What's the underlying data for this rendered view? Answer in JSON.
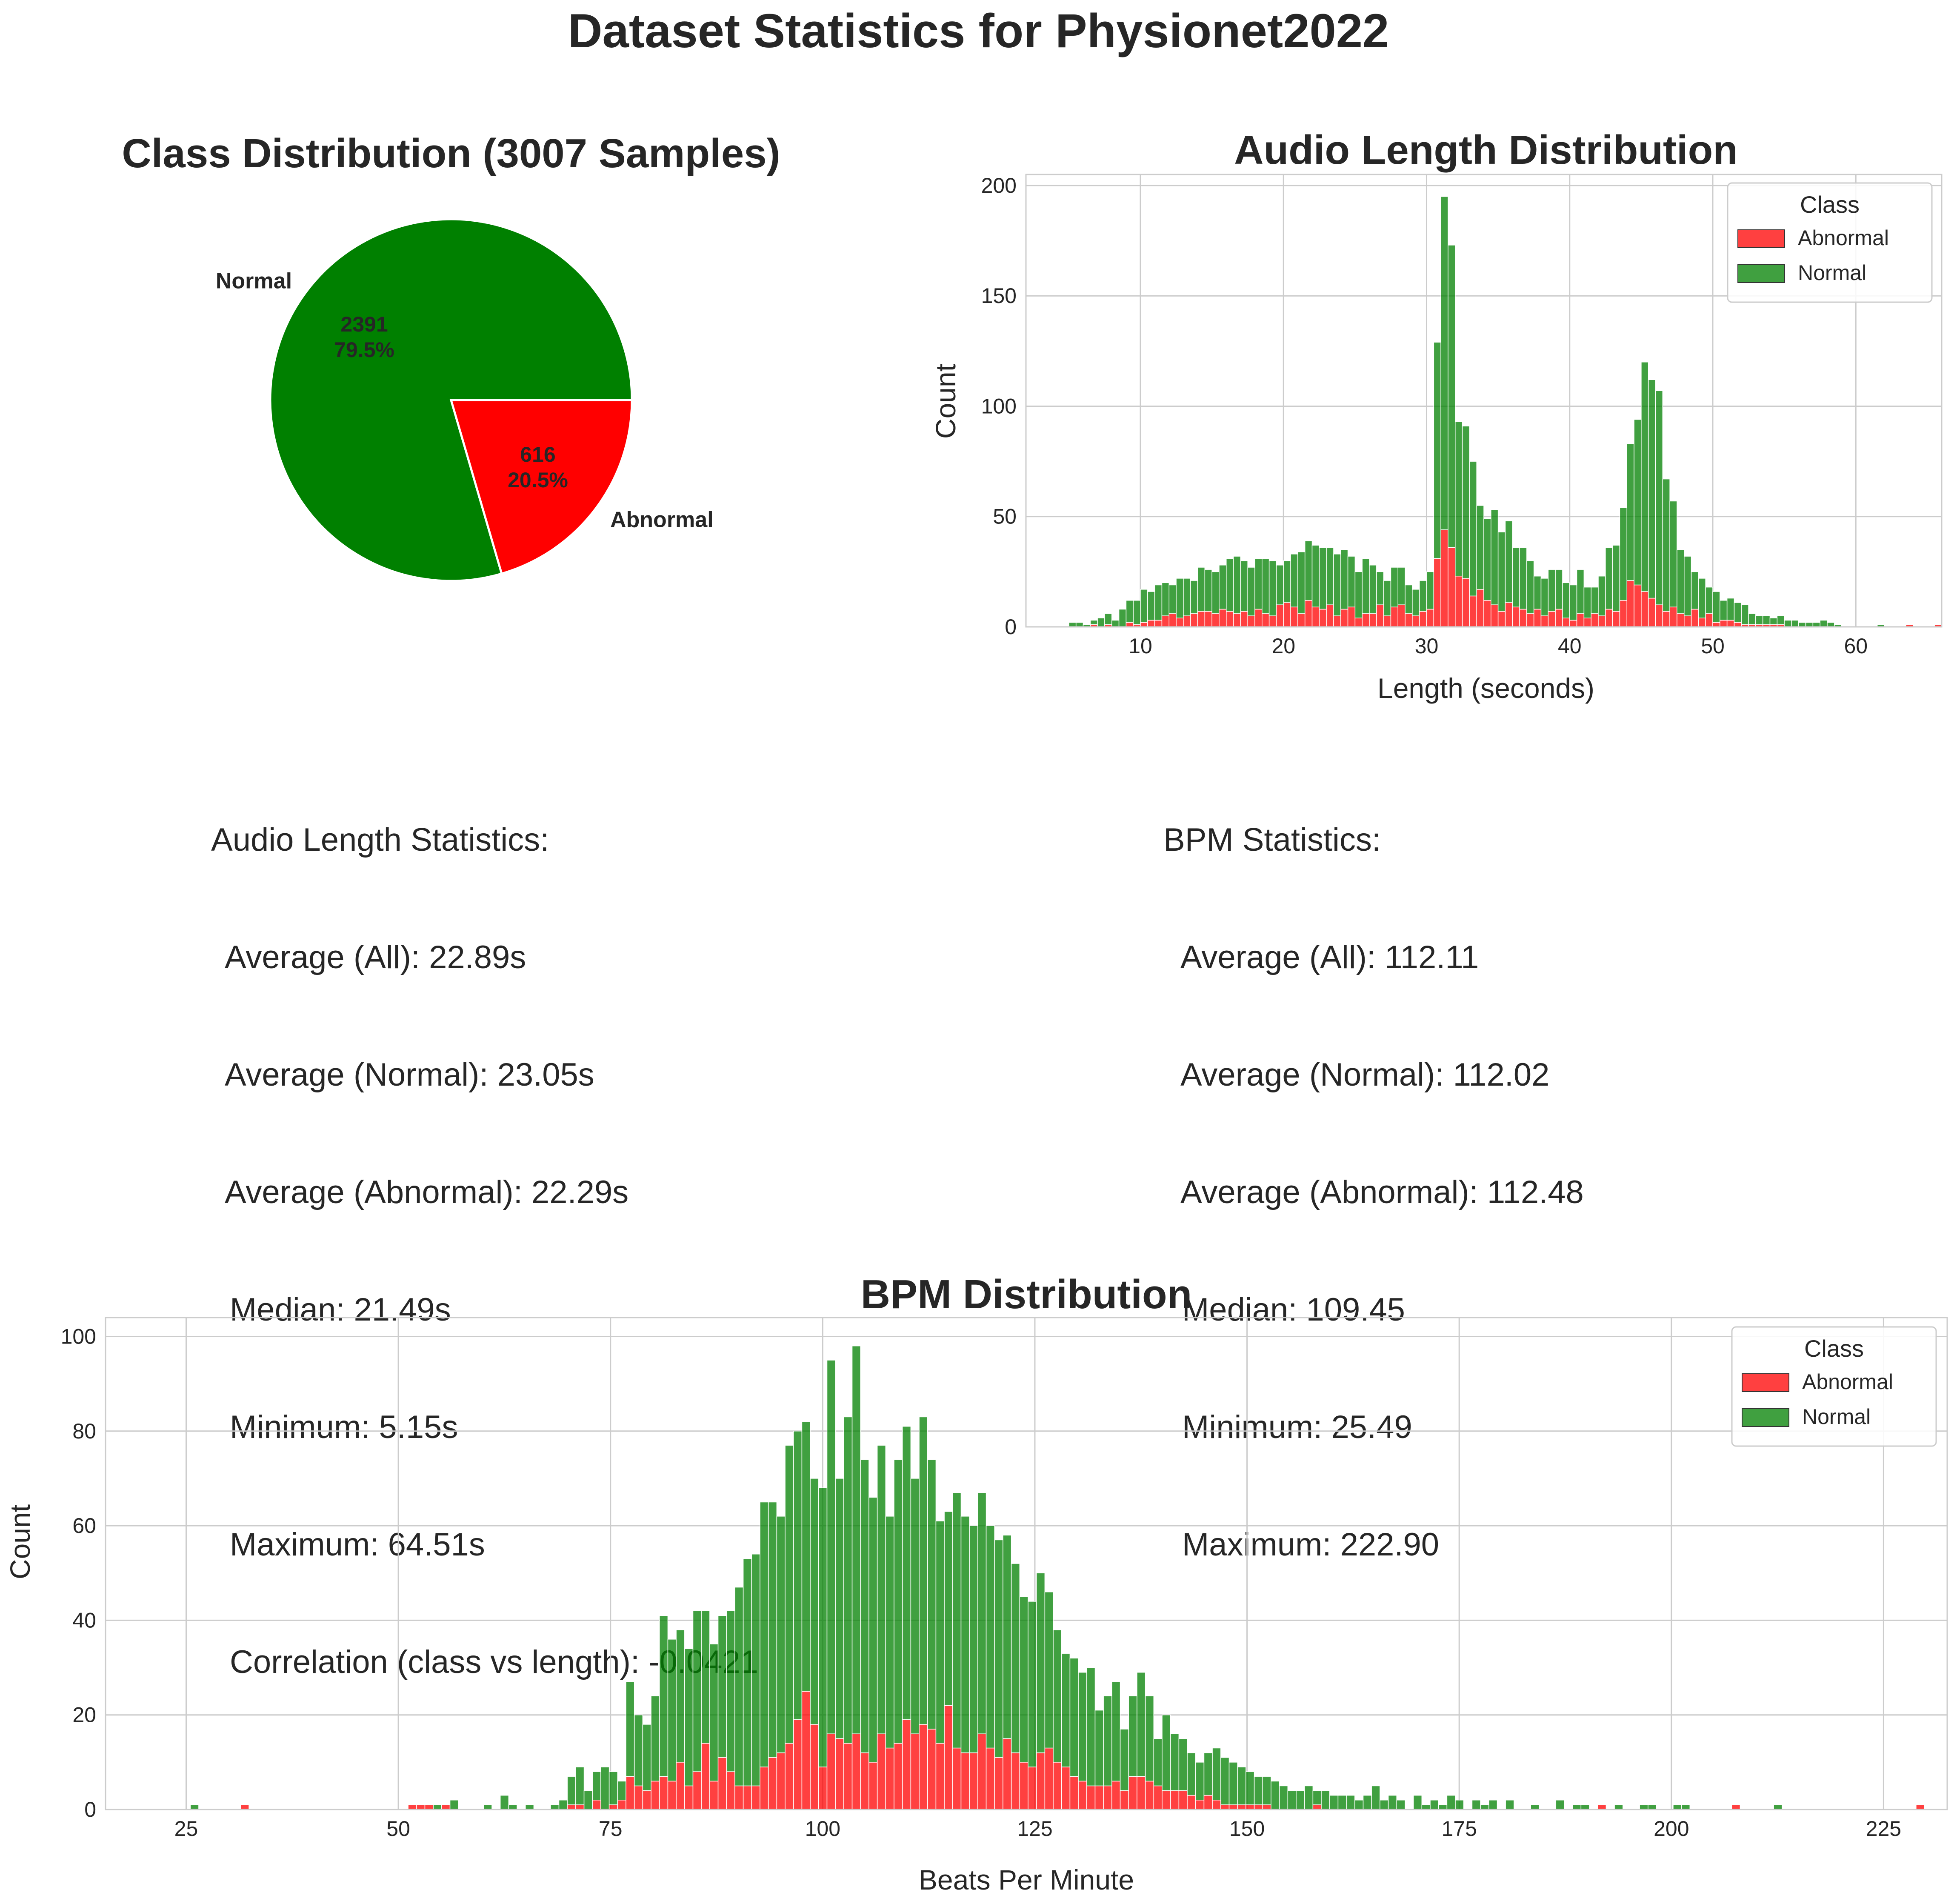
{
  "suptitle": "Dataset Statistics for Physionet2022",
  "colors": {
    "abnormal": "#ff0000",
    "normal": "#008000",
    "grid": "#cccccc",
    "text": "#262626"
  },
  "chart_data": [
    {
      "type": "pie",
      "title": "Class Distribution (3007 Samples)",
      "slices": [
        {
          "label": "Normal",
          "value": 2391,
          "pct_label": "79.5%",
          "color": "#008000"
        },
        {
          "label": "Abnormal",
          "value": 616,
          "pct_label": "20.5%",
          "color": "#ff0000"
        }
      ]
    },
    {
      "type": "bar",
      "stacked": true,
      "title": "Audio Length Distribution",
      "xlabel": "Length (seconds)",
      "ylabel": "Count",
      "xlim": [
        2,
        66
      ],
      "ylim": [
        0,
        205
      ],
      "xticks": [
        10,
        20,
        30,
        40,
        50,
        60
      ],
      "yticks": [
        0,
        50,
        100,
        150,
        200
      ],
      "grid": true,
      "legend": {
        "title": "Class",
        "position": "top-right",
        "entries": [
          "Abnormal",
          "Normal"
        ]
      },
      "bin_start": 5,
      "bin_width": 0.5,
      "series": [
        {
          "name": "Abnormal",
          "color": "#ff0000",
          "values": [
            0,
            0,
            0,
            1,
            0,
            1,
            0,
            0,
            2,
            1,
            2,
            3,
            3,
            5,
            6,
            4,
            5,
            6,
            7,
            7,
            6,
            8,
            7,
            6,
            7,
            5,
            8,
            6,
            5,
            10,
            11,
            9,
            6,
            12,
            9,
            8,
            10,
            5,
            8,
            9,
            4,
            6,
            6,
            10,
            5,
            9,
            10,
            6,
            5,
            7,
            8,
            31,
            44,
            36,
            23,
            22,
            14,
            17,
            12,
            10,
            7,
            11,
            9,
            8,
            6,
            8,
            5,
            7,
            8,
            4,
            3,
            6,
            4,
            6,
            5,
            8,
            7,
            12,
            21,
            19,
            16,
            13,
            10,
            7,
            9,
            6,
            5,
            8,
            4,
            6,
            2,
            3,
            3,
            2,
            1,
            1,
            1,
            1,
            1,
            1,
            0,
            0,
            0,
            0,
            0,
            0,
            0,
            0,
            0,
            0,
            0,
            0,
            0,
            0,
            0,
            0,
            0,
            1,
            0,
            0,
            0,
            1,
            0,
            0,
            0,
            0,
            0,
            1,
            0,
            0,
            0,
            0,
            0,
            0,
            0,
            0,
            0,
            0,
            0,
            0,
            0,
            0,
            0,
            0,
            0,
            0,
            0,
            0,
            0,
            0,
            0,
            0,
            0,
            0,
            0,
            0,
            0,
            0,
            0,
            0,
            0,
            0,
            0,
            0,
            0,
            0,
            0,
            0,
            0,
            0,
            0,
            0,
            0,
            0,
            0,
            0,
            1,
            0,
            0,
            0,
            0,
            0,
            0,
            0,
            0,
            0,
            0,
            0,
            1,
            0,
            0,
            0,
            0,
            0,
            0,
            0,
            0,
            0,
            0,
            0,
            1,
            0,
            0,
            0,
            0,
            0,
            0,
            0,
            0,
            0,
            0,
            0,
            0,
            0,
            0,
            0,
            0,
            0,
            0,
            0,
            0,
            0,
            0,
            0,
            0,
            0,
            0,
            0,
            0,
            0,
            0,
            1,
            1,
            0,
            0,
            0,
            0,
            0,
            0,
            0,
            0,
            1,
            0
          ]
        },
        {
          "name": "Normal",
          "color": "#008000",
          "values": [
            2,
            2,
            1,
            2,
            4,
            5,
            3,
            8,
            10,
            11,
            15,
            13,
            16,
            15,
            13,
            18,
            17,
            15,
            20,
            19,
            19,
            20,
            24,
            26,
            23,
            22,
            23,
            25,
            25,
            18,
            19,
            24,
            28,
            27,
            28,
            28,
            26,
            28,
            27,
            23,
            21,
            25,
            22,
            15,
            16,
            18,
            17,
            13,
            12,
            14,
            17,
            98,
            151,
            137,
            70,
            69,
            61,
            38,
            37,
            43,
            36,
            37,
            27,
            28,
            24,
            15,
            17,
            19,
            18,
            16,
            16,
            20,
            14,
            12,
            18,
            28,
            30,
            42,
            62,
            75,
            104,
            99,
            97,
            60,
            48,
            29,
            27,
            17,
            18,
            12,
            14,
            9,
            10,
            9,
            9,
            5,
            4,
            4,
            3,
            4,
            3,
            3,
            2,
            2,
            2,
            3,
            2,
            1,
            0,
            0,
            0,
            0,
            0,
            1,
            0,
            0,
            0,
            0,
            0,
            0,
            0,
            0,
            0,
            0,
            0,
            0,
            0,
            0,
            0,
            0,
            0,
            0,
            0,
            0,
            0,
            0,
            0,
            0,
            0,
            0,
            0,
            0,
            0,
            0,
            0,
            0,
            0,
            0,
            0,
            0,
            0,
            0,
            0,
            0,
            0,
            0,
            0,
            0,
            0,
            0,
            0,
            0,
            0,
            0,
            0,
            0,
            0,
            0,
            0,
            0,
            0,
            0,
            0,
            0,
            0,
            0,
            0,
            0,
            0,
            0,
            0,
            0,
            0,
            0,
            0,
            0,
            0,
            0,
            0,
            0,
            0,
            0,
            0,
            0,
            0,
            0,
            0,
            0,
            0,
            0,
            0,
            0,
            0,
            0,
            0,
            0,
            0,
            0,
            2,
            0,
            0,
            0,
            0,
            0,
            0,
            0,
            0,
            0,
            0,
            0,
            0,
            0,
            0,
            0,
            0,
            0,
            0,
            0,
            0,
            0,
            0,
            0,
            0,
            0,
            0,
            0,
            0,
            0,
            0,
            0,
            0,
            0,
            0,
            0,
            0
          ]
        }
      ]
    },
    {
      "type": "bar",
      "stacked": true,
      "title": "BPM Distribution",
      "xlabel": "Beats Per Minute",
      "ylabel": "Count",
      "xlim": [
        15.5,
        232.5
      ],
      "ylim": [
        0,
        104
      ],
      "xticks": [
        25,
        50,
        75,
        100,
        125,
        150,
        175,
        200,
        225
      ],
      "yticks": [
        0,
        20,
        40,
        60,
        80,
        100
      ],
      "grid": true,
      "legend": {
        "title": "Class",
        "position": "top-right",
        "entries": [
          "Abnormal",
          "Normal"
        ]
      },
      "bin_start": 25.49,
      "bin_width": 0.9871,
      "series": [
        {
          "name": "Abnormal",
          "color": "#ff0000",
          "values": [
            0,
            0,
            0,
            0,
            0,
            0,
            1,
            0,
            0,
            0,
            0,
            0,
            0,
            0,
            0,
            0,
            0,
            0,
            0,
            0,
            0,
            0,
            0,
            0,
            0,
            0,
            1,
            1,
            1,
            0,
            1,
            0,
            0,
            0,
            0,
            0,
            0,
            0,
            0,
            0,
            0,
            0,
            0,
            0,
            0,
            1,
            1,
            0,
            2,
            0,
            1,
            2,
            7,
            5,
            4,
            6,
            7,
            6,
            10,
            5,
            8,
            14,
            6,
            11,
            8,
            5,
            5,
            5,
            9,
            11,
            12,
            14,
            19,
            25,
            18,
            9,
            16,
            15,
            14,
            16,
            12,
            10,
            16,
            13,
            14,
            19,
            16,
            18,
            17,
            14,
            22,
            13,
            12,
            12,
            16,
            13,
            11,
            15,
            12,
            10,
            9,
            12,
            13,
            10,
            9,
            7,
            6,
            5,
            5,
            5,
            6,
            4,
            7,
            7,
            6,
            5,
            4,
            4,
            4,
            3,
            2,
            3,
            2,
            1,
            1,
            1,
            1,
            1,
            1,
            0,
            0,
            0,
            0,
            0,
            1,
            0,
            0,
            0,
            0,
            0,
            0,
            0,
            0,
            0,
            0,
            0,
            0,
            0,
            0,
            0,
            0,
            0,
            0,
            0,
            0,
            0,
            0,
            0,
            0,
            0,
            0,
            0,
            0,
            0,
            0,
            0,
            0,
            0,
            1,
            0,
            0,
            0,
            0,
            0,
            0,
            0,
            0,
            0,
            0,
            0,
            0,
            0,
            0,
            0,
            1,
            0,
            0,
            0,
            0,
            0,
            0,
            0,
            0,
            0,
            0,
            0,
            0,
            0,
            0,
            0,
            0,
            0,
            0,
            0,
            0,
            0,
            1,
            0,
            0,
            0,
            0,
            0,
            0,
            0,
            0,
            0,
            0
          ]
        },
        {
          "name": "Normal",
          "color": "#008000",
          "values": [
            1,
            0,
            0,
            0,
            0,
            0,
            0,
            0,
            0,
            0,
            0,
            0,
            0,
            0,
            0,
            0,
            0,
            0,
            0,
            0,
            0,
            0,
            0,
            0,
            0,
            0,
            0,
            0,
            0,
            1,
            0,
            2,
            0,
            0,
            0,
            1,
            0,
            3,
            1,
            0,
            1,
            0,
            0,
            1,
            2,
            6,
            8,
            4,
            6,
            9,
            7,
            4,
            20,
            15,
            14,
            18,
            34,
            30,
            28,
            29,
            34,
            28,
            29,
            30,
            34,
            42,
            48,
            49,
            56,
            54,
            50,
            63,
            61,
            57,
            52,
            59,
            79,
            55,
            69,
            82,
            62,
            56,
            61,
            49,
            60,
            62,
            54,
            65,
            57,
            47,
            41,
            54,
            50,
            48,
            51,
            47,
            46,
            43,
            40,
            35,
            35,
            38,
            33,
            28,
            24,
            25,
            23,
            25,
            16,
            19,
            21,
            13,
            17,
            22,
            18,
            10,
            16,
            12,
            11,
            9,
            8,
            9,
            11,
            10,
            9,
            8,
            7,
            6,
            6,
            6,
            5,
            4,
            4,
            5,
            3,
            4,
            3,
            3,
            3,
            2,
            3,
            5,
            2,
            3,
            2,
            0,
            3,
            1,
            2,
            1,
            3,
            2,
            0,
            2,
            1,
            2,
            0,
            2,
            0,
            0,
            1,
            0,
            0,
            2,
            0,
            1,
            1,
            0,
            0,
            0,
            1,
            0,
            0,
            1,
            1,
            0,
            0,
            1,
            1,
            0,
            0,
            0,
            0,
            0,
            0,
            0,
            0,
            0,
            0,
            1,
            0,
            0,
            0,
            0,
            0,
            0,
            0,
            0,
            0,
            0,
            0,
            0,
            0,
            0,
            0,
            0,
            0,
            0,
            0,
            0,
            0,
            0,
            0,
            0,
            0,
            0
          ]
        }
      ]
    }
  ],
  "audio_stats": {
    "header": "Audio Length Statistics:",
    "avg_all": "Average (All): 22.89s",
    "avg_normal": "Average (Normal): 23.05s",
    "avg_abnormal": "Average (Abnormal): 22.29s",
    "median": "Median: 21.49s",
    "minimum": "Minimum: 5.15s",
    "maximum": "Maximum: 64.51s",
    "correlation": "Correlation (class vs length): -0.0421"
  },
  "bpm_stats": {
    "header": "BPM Statistics:",
    "avg_all": "Average (All): 112.11",
    "avg_normal": "Average (Normal): 112.02",
    "avg_abnormal": "Average (Abnormal): 112.48",
    "median": "Median: 109.45",
    "minimum": "Minimum: 25.49",
    "maximum": "Maximum: 222.90"
  }
}
